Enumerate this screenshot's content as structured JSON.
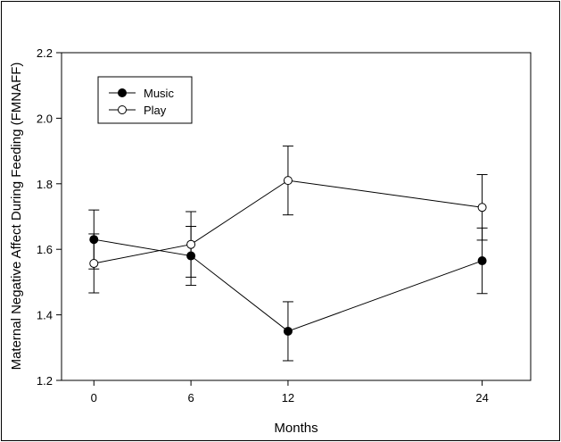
{
  "chart_data": {
    "type": "line",
    "xlabel": "Months",
    "ylabel": "Maternal Negative Affect During Feeding (FMNAFF)",
    "x": [
      0,
      6,
      12,
      24
    ],
    "xticks": [
      "0",
      "6",
      "12",
      "24"
    ],
    "xlim": [
      -2,
      27
    ],
    "ylim": [
      1.2,
      2.2
    ],
    "yticks": [
      "1.2",
      "1.4",
      "1.6",
      "1.8",
      "2.0",
      "2.2"
    ],
    "legend_position": "top-left",
    "grid": false,
    "series": [
      {
        "name": "Music",
        "marker": "filled-circle",
        "color": "#000000",
        "values": [
          1.63,
          1.58,
          1.35,
          1.565
        ],
        "error": [
          0.09,
          0.09,
          0.09,
          0.1
        ]
      },
      {
        "name": "Play",
        "marker": "open-circle",
        "color": "#000000",
        "values": [
          1.557,
          1.615,
          1.81,
          1.728
        ],
        "error": [
          0.09,
          0.1,
          0.105,
          0.1
        ]
      }
    ]
  }
}
